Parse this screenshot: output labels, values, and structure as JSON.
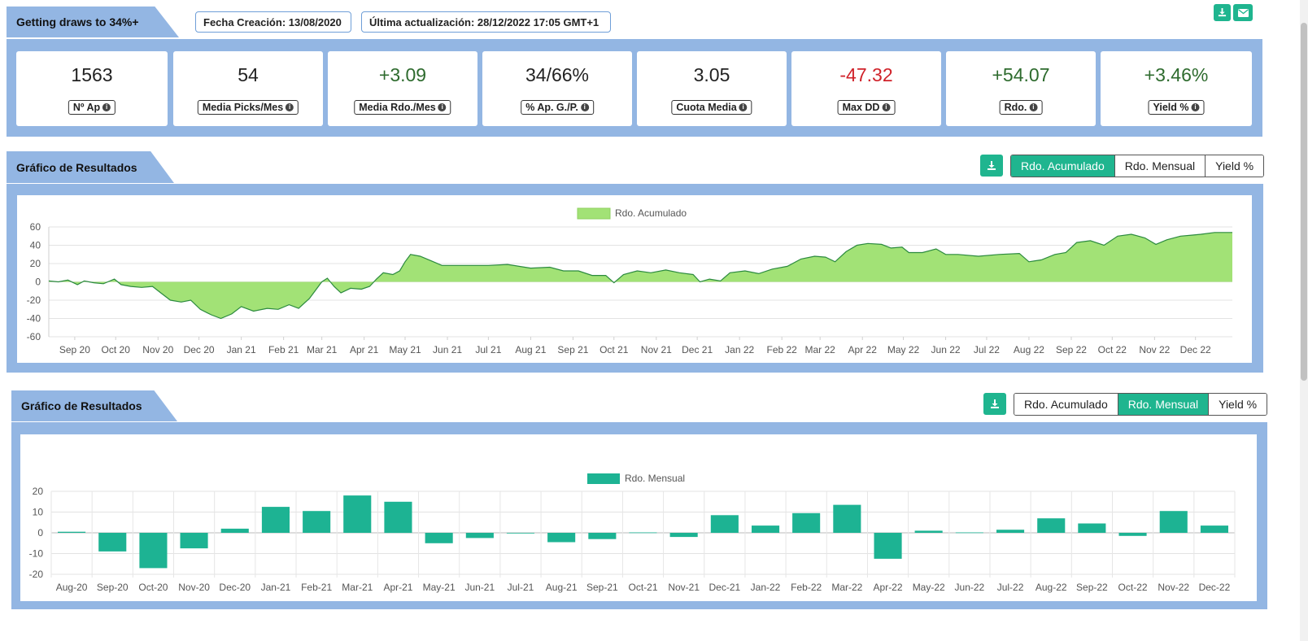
{
  "header": {
    "title": "Getting draws to 34%+",
    "created": "Fecha Creación: 13/08/2020",
    "updated": "Última actualización: 28/12/2022 17:05 GMT+1",
    "download_icon": "download-icon",
    "email_icon": "envelope-icon"
  },
  "stats": [
    {
      "value": "1563",
      "label": "Nº Ap",
      "color": "#222222"
    },
    {
      "value": "54",
      "label": "Media Picks/Mes",
      "color": "#222222"
    },
    {
      "value": "+3.09",
      "label": "Media Rdo./Mes",
      "color": "#2e6b2e"
    },
    {
      "value": "34/66%",
      "label": "% Ap. G./P.",
      "color": "#222222"
    },
    {
      "value": "3.05",
      "label": "Cuota Media",
      "color": "#222222"
    },
    {
      "value": "-47.32",
      "label": "Max DD",
      "color": "#d0222a"
    },
    {
      "value": "+54.07",
      "label": "Rdo.",
      "color": "#2e6b2e"
    },
    {
      "value": "+3.46%",
      "label": "Yield %",
      "color": "#2e6b2e"
    }
  ],
  "section1": {
    "title": "Gráfico de Resultados",
    "tabs": [
      "Rdo. Acumulado",
      "Rdo. Mensual",
      "Yield %"
    ],
    "active_tab": 0
  },
  "section2": {
    "title": "Gráfico de Resultados",
    "tabs": [
      "Rdo. Acumulado",
      "Rdo. Mensual",
      "Yield %"
    ],
    "active_tab": 1
  },
  "colors": {
    "accent": "#1fb58f",
    "panel": "#93b6e3",
    "area_fill": "#a2e276",
    "area_line": "#2b8a3e",
    "bar": "#1db393"
  },
  "chart_data": [
    {
      "type": "area",
      "title": "",
      "legend": [
        "Rdo. Acumulado"
      ],
      "legend_position": "top",
      "ylim": [
        -60,
        60
      ],
      "yticks": [
        60,
        40,
        20,
        0,
        -20,
        -40,
        -60
      ],
      "x_ticks": [
        "Sep 20",
        "Oct 20",
        "Nov 20",
        "Dec 20",
        "Jan 21",
        "Feb 21",
        "Mar 21",
        "Apr 21",
        "May 21",
        "Jun 21",
        "Jul 21",
        "Aug 21",
        "Sep 21",
        "Oct 21",
        "Nov 21",
        "Dec 21",
        "Jan 22",
        "Feb 22",
        "Mar 22",
        "Apr 22",
        "May 22",
        "Jun 22",
        "Jul 22",
        "Aug 22",
        "Sep 22",
        "Oct 22",
        "Nov 22",
        "Dec 22"
      ],
      "x_tick_dates": [
        "2020-09-01",
        "2020-10-01",
        "2020-11-01",
        "2020-12-01",
        "2021-01-01",
        "2021-02-01",
        "2021-03-01",
        "2021-04-01",
        "2021-05-01",
        "2021-06-01",
        "2021-07-01",
        "2021-08-01",
        "2021-09-01",
        "2021-10-01",
        "2021-11-01",
        "2021-12-01",
        "2022-01-01",
        "2022-02-01",
        "2022-03-01",
        "2022-04-01",
        "2022-05-01",
        "2022-06-01",
        "2022-07-01",
        "2022-08-01",
        "2022-09-01",
        "2022-10-01",
        "2022-11-01",
        "2022-12-01"
      ],
      "grid": true,
      "series": [
        {
          "name": "Rdo. Acumulado",
          "points": [
            [
              "2020-08-13",
              1
            ],
            [
              "2020-08-20",
              0
            ],
            [
              "2020-08-27",
              2
            ],
            [
              "2020-09-03",
              -3
            ],
            [
              "2020-09-08",
              1
            ],
            [
              "2020-09-15",
              -1
            ],
            [
              "2020-09-22",
              -2
            ],
            [
              "2020-09-30",
              3
            ],
            [
              "2020-10-05",
              -3
            ],
            [
              "2020-10-12",
              -5
            ],
            [
              "2020-10-20",
              -6
            ],
            [
              "2020-10-28",
              -5
            ],
            [
              "2020-11-03",
              -12
            ],
            [
              "2020-11-10",
              -20
            ],
            [
              "2020-11-18",
              -22
            ],
            [
              "2020-11-25",
              -20
            ],
            [
              "2020-12-02",
              -30
            ],
            [
              "2020-12-10",
              -36
            ],
            [
              "2020-12-17",
              -40
            ],
            [
              "2020-12-25",
              -35
            ],
            [
              "2021-01-01",
              -27
            ],
            [
              "2021-01-10",
              -32
            ],
            [
              "2021-01-20",
              -29
            ],
            [
              "2021-01-28",
              -30
            ],
            [
              "2021-02-05",
              -25
            ],
            [
              "2021-02-12",
              -29
            ],
            [
              "2021-02-20",
              -18
            ],
            [
              "2021-02-25",
              -8
            ],
            [
              "2021-03-01",
              0
            ],
            [
              "2021-03-05",
              4
            ],
            [
              "2021-03-10",
              -5
            ],
            [
              "2021-03-15",
              -12
            ],
            [
              "2021-03-22",
              -7
            ],
            [
              "2021-03-30",
              -8
            ],
            [
              "2021-04-05",
              -5
            ],
            [
              "2021-04-10",
              3
            ],
            [
              "2021-04-15",
              10
            ],
            [
              "2021-04-22",
              8
            ],
            [
              "2021-04-27",
              12
            ],
            [
              "2021-05-01",
              22
            ],
            [
              "2021-05-05",
              30
            ],
            [
              "2021-05-12",
              28
            ],
            [
              "2021-05-20",
              23
            ],
            [
              "2021-05-28",
              18
            ],
            [
              "2021-06-05",
              18
            ],
            [
              "2021-06-20",
              18
            ],
            [
              "2021-07-01",
              18
            ],
            [
              "2021-07-15",
              19
            ],
            [
              "2021-08-01",
              15
            ],
            [
              "2021-08-15",
              16
            ],
            [
              "2021-08-25",
              12
            ],
            [
              "2021-09-05",
              12
            ],
            [
              "2021-09-15",
              7
            ],
            [
              "2021-09-25",
              7
            ],
            [
              "2021-10-01",
              -1
            ],
            [
              "2021-10-08",
              8
            ],
            [
              "2021-10-18",
              12
            ],
            [
              "2021-10-28",
              10
            ],
            [
              "2021-11-08",
              13
            ],
            [
              "2021-11-18",
              10
            ],
            [
              "2021-11-28",
              8
            ],
            [
              "2021-12-03",
              0
            ],
            [
              "2021-12-10",
              3
            ],
            [
              "2021-12-18",
              1
            ],
            [
              "2021-12-25",
              10
            ],
            [
              "2022-01-05",
              12
            ],
            [
              "2022-01-15",
              9
            ],
            [
              "2022-01-25",
              14
            ],
            [
              "2022-02-05",
              17
            ],
            [
              "2022-02-15",
              25
            ],
            [
              "2022-02-25",
              28
            ],
            [
              "2022-03-05",
              27
            ],
            [
              "2022-03-12",
              22
            ],
            [
              "2022-03-20",
              33
            ],
            [
              "2022-03-28",
              40
            ],
            [
              "2022-04-05",
              42
            ],
            [
              "2022-04-15",
              41
            ],
            [
              "2022-04-22",
              37
            ],
            [
              "2022-04-30",
              38
            ],
            [
              "2022-05-05",
              32
            ],
            [
              "2022-05-15",
              32
            ],
            [
              "2022-05-25",
              36
            ],
            [
              "2022-06-01",
              30
            ],
            [
              "2022-06-10",
              30
            ],
            [
              "2022-06-25",
              28
            ],
            [
              "2022-07-10",
              30
            ],
            [
              "2022-07-25",
              31
            ],
            [
              "2022-08-01",
              22
            ],
            [
              "2022-08-10",
              24
            ],
            [
              "2022-08-20",
              30
            ],
            [
              "2022-08-28",
              32
            ],
            [
              "2022-09-05",
              43
            ],
            [
              "2022-09-15",
              45
            ],
            [
              "2022-09-25",
              40
            ],
            [
              "2022-10-05",
              50
            ],
            [
              "2022-10-15",
              52
            ],
            [
              "2022-10-25",
              48
            ],
            [
              "2022-11-02",
              41
            ],
            [
              "2022-11-10",
              46
            ],
            [
              "2022-11-20",
              50
            ],
            [
              "2022-11-28",
              51
            ],
            [
              "2022-12-05",
              52
            ],
            [
              "2022-12-15",
              54
            ],
            [
              "2022-12-28",
              54
            ]
          ]
        }
      ]
    },
    {
      "type": "bar",
      "title": "",
      "legend": [
        "Rdo. Mensual"
      ],
      "legend_position": "top",
      "ylim": [
        -20,
        20
      ],
      "yticks": [
        20,
        10,
        0,
        -10,
        -20
      ],
      "grid": true,
      "categories": [
        "Aug-20",
        "Sep-20",
        "Oct-20",
        "Nov-20",
        "Dec-20",
        "Jan-21",
        "Feb-21",
        "Mar-21",
        "Apr-21",
        "May-21",
        "Jun-21",
        "Jul-21",
        "Aug-21",
        "Sep-21",
        "Oct-21",
        "Nov-21",
        "Dec-21",
        "Jan-22",
        "Feb-22",
        "Mar-22",
        "Apr-22",
        "May-22",
        "Jun-22",
        "Jul-22",
        "Aug-22",
        "Sep-22",
        "Oct-22",
        "Nov-22",
        "Dec-22"
      ],
      "series": [
        {
          "name": "Rdo. Mensual",
          "values": [
            0.5,
            -9,
            -17,
            -7.5,
            2,
            12.5,
            10.5,
            18,
            15,
            -5,
            -2.5,
            0,
            -4.5,
            -3,
            0.2,
            -2,
            8.5,
            3.5,
            9.5,
            13.5,
            -12.5,
            1,
            0.2,
            1.5,
            7,
            4.5,
            -1.5,
            10.5,
            3.5
          ]
        }
      ]
    }
  ]
}
